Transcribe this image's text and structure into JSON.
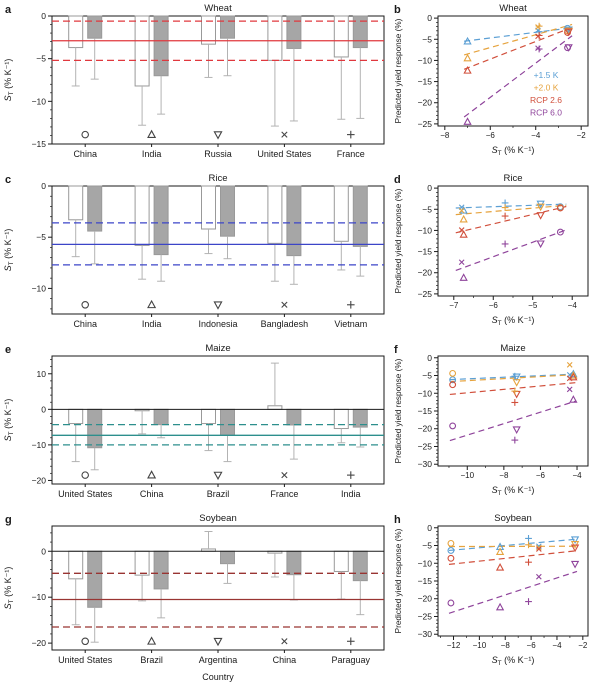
{
  "figure": {
    "background": "#ffffff",
    "bar_fill_open": "#ffffff",
    "bar_fill_gray": "#a6a6a6",
    "bar_stroke": "#999999",
    "whisker_color": "#b3b3b3",
    "frame_color": "#1a1a1a",
    "text_color": "#1a1a1a",
    "symbol_row_color": "#444444"
  },
  "scenarios": [
    {
      "label": "+1.5 K",
      "color": "#5b9fd4"
    },
    {
      "label": "+2.0 K",
      "color": "#e6a33e"
    },
    {
      "label": "RCP 2.6",
      "color": "#d14f3b"
    },
    {
      "label": "RCP 6.0",
      "color": "#8f449b"
    }
  ],
  "axis_labels": {
    "st": {
      "letter": "S",
      "sub": "T",
      "units": "(% K⁻¹)"
    },
    "predicted": "Predicted yield response (%)",
    "country": "Country"
  },
  "chart_data": [
    {
      "panel": "a",
      "type": "bar",
      "title": "Wheat",
      "ylim": [
        -15,
        0
      ],
      "yticks": [
        0,
        -5,
        -10,
        -15
      ],
      "y_minor": 1,
      "symbol_y": -13.9,
      "ref": {
        "color": "#e0383e",
        "solid": -2.9,
        "dashed": [
          -0.6,
          -5.2
        ]
      },
      "categories": [
        "China",
        "India",
        "Russia",
        "United States",
        "France"
      ],
      "markers": [
        "circle",
        "triangle-up",
        "triangle-down",
        "x",
        "plus"
      ],
      "open_bars": [
        [
          -3.7,
          -8.2
        ],
        [
          -8.2,
          -12.8
        ],
        [
          -3.3,
          -7.2
        ],
        [
          -5.2,
          -12.9
        ],
        [
          -4.8,
          -12.1
        ]
      ],
      "gray_bars": [
        [
          -2.6,
          -7.4
        ],
        [
          -7.0,
          -11.5
        ],
        [
          -2.6,
          -7.0
        ],
        [
          -3.8,
          -12.3
        ],
        [
          -3.7,
          -12.0
        ]
      ]
    },
    {
      "panel": "b",
      "type": "scatter",
      "title": "Wheat",
      "xlim": [
        -8.3,
        -1.7
      ],
      "xticks": [
        -8,
        -6,
        -4,
        -2
      ],
      "x_minor": 1,
      "ylim": [
        -25.5,
        0.5
      ],
      "yticks": [
        0,
        -5,
        -10,
        -15,
        -20,
        -25
      ],
      "y_minor": 1,
      "legend": true,
      "points": [
        {
          "country": "China",
          "marker": "circle",
          "x": -2.6,
          "y": [
            -2.4,
            -3.0,
            -3.4,
            -7.0
          ]
        },
        {
          "country": "India",
          "marker": "triangle-up",
          "x": -7.0,
          "y": [
            -5.5,
            -9.5,
            -12.4,
            -24.5
          ]
        },
        {
          "country": "Russia",
          "marker": "triangle-down",
          "x": -2.55,
          "y": [
            -2.7,
            -3.0,
            -3.2,
            -6.9
          ]
        },
        {
          "country": "United States",
          "marker": "x",
          "x": -3.9,
          "y": [
            -2.9,
            -2.1,
            -4.3,
            -7.1
          ]
        },
        {
          "country": "France",
          "marker": "plus",
          "x": -3.85,
          "y": [
            -3.2,
            -1.9,
            -4.1,
            -7.3
          ]
        }
      ]
    },
    {
      "panel": "c",
      "type": "bar",
      "title": "Rice",
      "ylim": [
        -12.5,
        0
      ],
      "yticks": [
        0,
        -5,
        -10
      ],
      "y_minor": 1,
      "symbol_y": -11.6,
      "ref": {
        "color": "#3c45c8",
        "solid": -5.7,
        "dashed": [
          -3.6,
          -7.7
        ]
      },
      "categories": [
        "China",
        "India",
        "Indonesia",
        "Bangladesh",
        "Vietnam"
      ],
      "markers": [
        "circle",
        "triangle-up",
        "triangle-down",
        "x",
        "plus"
      ],
      "open_bars": [
        [
          -3.3,
          -6.9
        ],
        [
          -5.8,
          -9.1
        ],
        [
          -4.2,
          -6.6
        ],
        [
          -5.6,
          -9.3
        ],
        [
          -5.4,
          -8.2
        ]
      ],
      "gray_bars": [
        [
          -4.4,
          -7.6
        ],
        [
          -6.7,
          -9.3
        ],
        [
          -4.9,
          -7.1
        ],
        [
          -6.8,
          -9.6
        ],
        [
          -5.9,
          -8.8
        ]
      ]
    },
    {
      "panel": "d",
      "type": "scatter",
      "title": "Rice",
      "xlim": [
        -7.4,
        -3.6
      ],
      "xticks": [
        -7,
        -6,
        -5,
        -4
      ],
      "x_minor": 0.5,
      "ylim": [
        -25.5,
        0.5
      ],
      "yticks": [
        0,
        -5,
        -10,
        -15,
        -20,
        -25
      ],
      "y_minor": 1,
      "legend": false,
      "points": [
        {
          "country": "China",
          "marker": "circle",
          "x": -4.3,
          "y": [
            -4.4,
            -4.6,
            -4.7,
            -10.4
          ]
        },
        {
          "country": "India",
          "marker": "triangle-up",
          "x": -6.75,
          "y": [
            -5.3,
            -7.4,
            -11.0,
            -21.2
          ]
        },
        {
          "country": "Indonesia",
          "marker": "triangle-down",
          "x": -4.8,
          "y": [
            -3.7,
            -4.4,
            -6.4,
            -13.1
          ]
        },
        {
          "country": "Bangladesh",
          "marker": "x",
          "x": -6.8,
          "y": [
            -4.5,
            -5.3,
            -9.9,
            -17.5
          ]
        },
        {
          "country": "Vietnam",
          "marker": "plus",
          "x": -5.7,
          "y": [
            -3.5,
            -4.6,
            -6.6,
            -13.2
          ]
        }
      ]
    },
    {
      "panel": "e",
      "type": "bar",
      "title": "Maize",
      "ylim": [
        -21,
        15
      ],
      "yticks": [
        10,
        0,
        -10,
        -20
      ],
      "y_minor": 2,
      "symbol_y": -18.5,
      "ref": {
        "color": "#2d8f8d",
        "solid": -7.3,
        "dashed": [
          -4.3,
          -10.0
        ]
      },
      "categories": [
        "United States",
        "China",
        "Brazil",
        "France",
        "India"
      ],
      "markers": [
        "circle",
        "triangle-up",
        "triangle-down",
        "x",
        "plus"
      ],
      "open_bars": [
        [
          -4.0,
          -14.7
        ],
        [
          -0.4,
          -6.9
        ],
        [
          -4.0,
          -11.6
        ],
        [
          1.0,
          13.0
        ],
        [
          -5.4,
          -9.4
        ]
      ],
      "gray_bars": [
        [
          -10.8,
          -17.0
        ],
        [
          -4.3,
          -8.0
        ],
        [
          -7.3,
          -14.7
        ],
        [
          -4.4,
          -14.0
        ],
        [
          -5.0,
          -10.6
        ]
      ]
    },
    {
      "panel": "f",
      "type": "scatter",
      "title": "Maize",
      "xlim": [
        -11.6,
        -3.4
      ],
      "xticks": [
        -10,
        -8,
        -6,
        -4
      ],
      "x_minor": 1,
      "ylim": [
        -30.5,
        0.5
      ],
      "yticks": [
        0,
        -5,
        -10,
        -15,
        -20,
        -25,
        -30
      ],
      "y_minor": 1,
      "legend": false,
      "points": [
        {
          "country": "United States",
          "marker": "circle",
          "x": -10.8,
          "y": [
            -6.2,
            -4.4,
            -7.6,
            -19.2
          ]
        },
        {
          "country": "China",
          "marker": "triangle-up",
          "x": -4.2,
          "y": [
            -4.6,
            -5.0,
            -5.5,
            -11.8
          ]
        },
        {
          "country": "Brazil",
          "marker": "triangle-down",
          "x": -7.3,
          "y": [
            -5.3,
            -6.9,
            -10.2,
            -20.2
          ]
        },
        {
          "country": "France",
          "marker": "x",
          "x": -4.4,
          "y": [
            -4.8,
            -2.0,
            -5.8,
            -8.9
          ]
        },
        {
          "country": "India",
          "marker": "plus",
          "x": -7.4,
          "y": [
            -5.2,
            -9.4,
            -12.6,
            -23.2
          ]
        }
      ]
    },
    {
      "panel": "g",
      "type": "bar",
      "title": "Soybean",
      "xlabel": "country",
      "ylim": [
        -21.5,
        5.5
      ],
      "yticks": [
        0,
        -10,
        -20
      ],
      "y_minor": 2,
      "symbol_y": -19.6,
      "ref": {
        "color": "#993432",
        "solid": -10.5,
        "dashed": [
          -4.8,
          -16.5
        ]
      },
      "categories": [
        "United States",
        "Brazil",
        "Argentina",
        "China",
        "Paraguay"
      ],
      "markers": [
        "circle",
        "triangle-up",
        "triangle-down",
        "x",
        "plus"
      ],
      "open_bars": [
        [
          -6.0,
          -16.0
        ],
        [
          -5.2,
          -10.8
        ],
        [
          0.5,
          4.3
        ],
        [
          -0.4,
          -5.6
        ],
        [
          -4.4,
          -10.4
        ]
      ],
      "gray_bars": [
        [
          -12.2,
          -19.8
        ],
        [
          -8.2,
          -14.5
        ],
        [
          -2.7,
          -7.0
        ],
        [
          -5.1,
          -10.6
        ],
        [
          -6.4,
          -13.8
        ]
      ]
    },
    {
      "panel": "h",
      "type": "scatter",
      "title": "Soybean",
      "xlim": [
        -13.2,
        -1.6
      ],
      "xticks": [
        -12,
        -10,
        -8,
        -6,
        -4,
        -2
      ],
      "x_minor": 1,
      "ylim": [
        -30.5,
        0.5
      ],
      "yticks": [
        0,
        -5,
        -10,
        -15,
        -20,
        -25,
        -30
      ],
      "y_minor": 1,
      "legend": false,
      "points": [
        {
          "country": "United States",
          "marker": "circle",
          "x": -12.2,
          "y": [
            -6.4,
            -4.4,
            -8.6,
            -21.2
          ]
        },
        {
          "country": "Brazil",
          "marker": "triangle-up",
          "x": -8.4,
          "y": [
            -5.4,
            -6.8,
            -11.2,
            -22.4
          ]
        },
        {
          "country": "Argentina",
          "marker": "triangle-down",
          "x": -2.6,
          "y": [
            -3.3,
            -4.6,
            -5.6,
            -10.2
          ]
        },
        {
          "country": "China",
          "marker": "x",
          "x": -5.4,
          "y": [
            -5.2,
            -5.6,
            -6.0,
            -13.8
          ]
        },
        {
          "country": "Paraguay",
          "marker": "plus",
          "x": -6.2,
          "y": [
            -3.0,
            -4.8,
            -9.7,
            -20.8
          ]
        }
      ]
    }
  ]
}
